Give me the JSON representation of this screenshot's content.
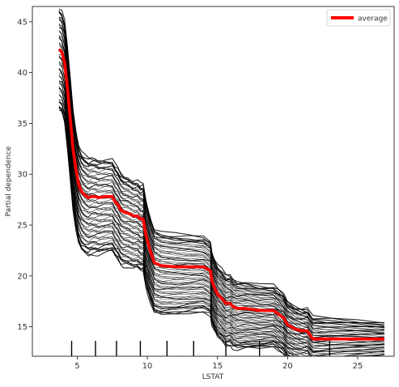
{
  "chart_data": {
    "type": "line",
    "title": "",
    "xlabel": "LSTAT",
    "ylabel": "Partial dependence",
    "xlim": [
      1.8,
      27.6
    ],
    "ylim": [
      12.1,
      46.5
    ],
    "xticks": [
      5,
      10,
      15,
      20,
      25
    ],
    "yticks": [
      15,
      20,
      25,
      30,
      35,
      40,
      45
    ],
    "xtick_labels": [
      "5",
      "10",
      "15",
      "20",
      "25"
    ],
    "ytick_labels": [
      "15",
      "20",
      "25",
      "30",
      "35",
      "40",
      "45"
    ],
    "grid": false,
    "legend": {
      "position": "top-right",
      "entries": [
        "average"
      ]
    },
    "colors": {
      "individual": "#000000",
      "average": "#ff0000",
      "axes": "#222222"
    },
    "x": [
      3.7,
      3.9,
      4.1,
      4.3,
      4.5,
      4.7,
      4.9,
      5.1,
      5.3,
      5.5,
      5.8,
      6.0,
      6.3,
      6.5,
      7.0,
      7.5,
      7.7,
      7.9,
      8.1,
      8.3,
      8.6,
      9.0,
      9.3,
      9.5,
      9.7,
      9.9,
      10.0,
      10.2,
      10.5,
      11.0,
      12.0,
      13.0,
      14.0,
      14.5,
      14.6,
      14.8,
      15.0,
      15.3,
      15.6,
      15.9,
      16.1,
      16.4,
      17.0,
      18.0,
      19.0,
      19.3,
      19.7,
      20.0,
      20.5,
      21.0,
      21.4,
      21.8,
      23.0,
      25.0,
      26.9
    ],
    "series": [
      {
        "name": "average",
        "values": [
          42.3,
          42.0,
          41.0,
          38.5,
          35.5,
          32.5,
          30.5,
          29.0,
          28.3,
          28.0,
          27.7,
          27.8,
          27.8,
          27.7,
          27.8,
          27.8,
          27.3,
          27.0,
          26.5,
          26.3,
          26.2,
          25.9,
          25.9,
          25.6,
          25.6,
          24.0,
          23.5,
          22.5,
          21.3,
          21.0,
          20.9,
          20.9,
          20.9,
          20.5,
          19.5,
          18.8,
          18.2,
          17.8,
          17.3,
          17.3,
          17.0,
          16.8,
          16.8,
          16.6,
          16.6,
          16.3,
          15.9,
          15.2,
          14.8,
          14.6,
          14.6,
          13.8,
          13.8,
          13.8,
          13.8
        ]
      }
    ],
    "ice_curves": {
      "count": 60,
      "offset_range": [
        -6.0,
        4.0
      ]
    },
    "rug_x": [
      4.6,
      6.3,
      7.8,
      9.5,
      11.4,
      13.3,
      15.6,
      18.0,
      23.0
    ]
  }
}
